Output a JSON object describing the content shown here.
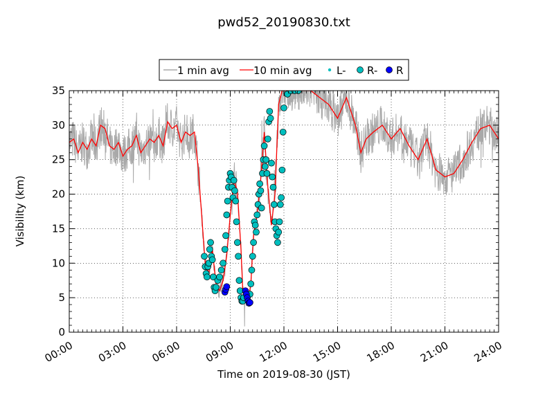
{
  "chart_data": {
    "type": "line",
    "title": "pwd52_20190830.txt",
    "xlabel": "Time on 2019-08-30 (JST)",
    "ylabel": "Visibility (km)",
    "xlim": [
      0,
      24
    ],
    "ylim": [
      0,
      35
    ],
    "x_unit": "hours (JST)",
    "x_ticks": [
      0,
      3,
      6,
      9,
      12,
      15,
      18,
      21,
      24
    ],
    "x_tick_labels": [
      "00:00",
      "03:00",
      "06:00",
      "09:00",
      "12:00",
      "15:00",
      "18:00",
      "21:00",
      "24:00"
    ],
    "y_ticks": [
      0,
      5,
      10,
      15,
      20,
      25,
      30,
      35
    ],
    "y_tick_labels": [
      "0",
      "5",
      "10",
      "15",
      "20",
      "25",
      "30",
      "35"
    ],
    "grid": true,
    "legend_position": "top-center",
    "legend": [
      {
        "label": "1 min avg",
        "kind": "line",
        "color": "#a9a9a9"
      },
      {
        "label": "10 min avg",
        "kind": "line",
        "color": "#ff0000"
      },
      {
        "label": "L-",
        "kind": "small-dot",
        "color": "#00bfbf"
      },
      {
        "label": "R-",
        "kind": "marker",
        "color": "#00bfbf"
      },
      {
        "label": "R",
        "kind": "marker",
        "color": "#0000ff"
      }
    ],
    "series": [
      {
        "name": "10 min avg",
        "color": "#ff0000",
        "x": [
          0.0,
          0.25,
          0.5,
          0.75,
          1.0,
          1.25,
          1.5,
          1.75,
          2.0,
          2.25,
          2.5,
          2.75,
          3.0,
          3.25,
          3.5,
          3.75,
          4.0,
          4.25,
          4.5,
          4.75,
          5.0,
          5.25,
          5.5,
          5.75,
          6.0,
          6.25,
          6.5,
          6.75,
          7.0,
          7.2,
          7.4,
          7.6,
          7.8,
          8.0,
          8.2,
          8.4,
          8.6,
          8.8,
          9.0,
          9.2,
          9.4,
          9.6,
          9.7,
          9.85,
          10.0,
          10.15,
          10.3,
          10.5,
          10.7,
          10.9,
          11.1,
          11.3,
          11.5,
          11.7,
          11.9,
          12.0,
          12.2,
          12.5,
          13.0,
          13.5,
          14.0,
          14.5,
          15.0,
          15.5,
          16.0,
          16.3,
          16.6,
          17.0,
          17.5,
          18.0,
          18.5,
          19.0,
          19.5,
          20.0,
          20.5,
          21.0,
          21.5,
          22.0,
          22.5,
          23.0,
          23.5,
          24.0
        ],
        "y": [
          27.5,
          28.0,
          26.0,
          27.5,
          26.5,
          28.0,
          27.0,
          30.0,
          29.5,
          27.0,
          26.5,
          27.5,
          25.5,
          26.5,
          27.0,
          28.5,
          26.0,
          27.0,
          28.0,
          27.5,
          28.5,
          27.0,
          30.5,
          29.5,
          30.0,
          27.5,
          29.0,
          28.5,
          29.0,
          24.0,
          17.0,
          10.0,
          8.5,
          12.0,
          7.0,
          6.0,
          7.5,
          11.0,
          17.0,
          22.0,
          20.5,
          12.0,
          6.0,
          4.5,
          4.5,
          7.0,
          14.0,
          17.0,
          22.0,
          29.0,
          21.0,
          15.5,
          20.0,
          33.0,
          35.0,
          35.0,
          35.0,
          35.0,
          35.0,
          35.0,
          34.0,
          33.0,
          31.0,
          34.0,
          30.0,
          26.0,
          28.0,
          29.0,
          30.0,
          28.0,
          29.5,
          27.0,
          25.0,
          28.0,
          23.5,
          22.5,
          23.0,
          25.0,
          27.5,
          29.5,
          30.0,
          28.0
        ]
      },
      {
        "name": "R-",
        "color": "#00bfbf",
        "x": [
          7.55,
          7.6,
          7.65,
          7.7,
          7.75,
          7.8,
          7.85,
          7.9,
          7.95,
          8.0,
          8.05,
          8.1,
          8.15,
          8.2,
          8.3,
          8.4,
          8.5,
          8.6,
          8.7,
          8.75,
          8.8,
          8.85,
          8.9,
          8.95,
          9.0,
          9.05,
          9.1,
          9.15,
          9.2,
          9.25,
          9.3,
          9.35,
          9.4,
          9.45,
          9.5,
          9.55,
          9.6,
          9.65,
          9.7,
          9.75,
          10.1,
          10.15,
          10.2,
          10.25,
          10.3,
          10.35,
          10.4,
          10.45,
          10.5,
          10.55,
          10.6,
          10.65,
          10.7,
          10.75,
          10.8,
          10.85,
          10.9,
          10.95,
          11.0,
          11.05,
          11.1,
          11.15,
          11.2,
          11.25,
          11.3,
          11.35,
          11.4,
          11.45,
          11.5,
          11.55,
          11.6,
          11.65,
          11.7,
          11.75,
          11.8,
          11.85,
          11.9,
          11.95,
          12.0,
          12.2,
          12.4,
          12.6,
          12.8
        ],
        "y": [
          11.0,
          9.5,
          8.5,
          8.0,
          9.5,
          10.0,
          12.0,
          13.0,
          11.0,
          10.5,
          8.0,
          6.5,
          6.0,
          6.5,
          7.5,
          8.0,
          9.0,
          10.0,
          12.0,
          14.0,
          17.0,
          19.0,
          21.0,
          22.0,
          23.0,
          22.5,
          21.0,
          19.5,
          22.0,
          20.5,
          19.0,
          16.0,
          13.0,
          11.0,
          7.5,
          6.0,
          5.0,
          4.5,
          4.5,
          5.0,
          5.5,
          7.0,
          9.0,
          11.0,
          13.0,
          16.0,
          15.5,
          14.5,
          17.0,
          18.5,
          20.0,
          21.5,
          20.5,
          18.0,
          23.0,
          25.0,
          27.0,
          24.0,
          25.0,
          23.0,
          28.0,
          30.5,
          32.0,
          31.0,
          24.5,
          22.5,
          21.0,
          18.5,
          16.0,
          15.0,
          14.0,
          13.0,
          14.5,
          16.0,
          18.5,
          19.5,
          23.5,
          29.0,
          32.5,
          34.5,
          35.0,
          35.0,
          35.0
        ]
      },
      {
        "name": "R",
        "color": "#0000ff",
        "x": [
          8.7,
          8.75,
          8.8,
          9.85,
          9.9,
          9.95,
          10.0,
          10.05,
          10.1
        ],
        "y": [
          5.8,
          6.2,
          6.6,
          6.0,
          5.5,
          5.0,
          4.5,
          4.2,
          4.3
        ]
      }
    ]
  }
}
